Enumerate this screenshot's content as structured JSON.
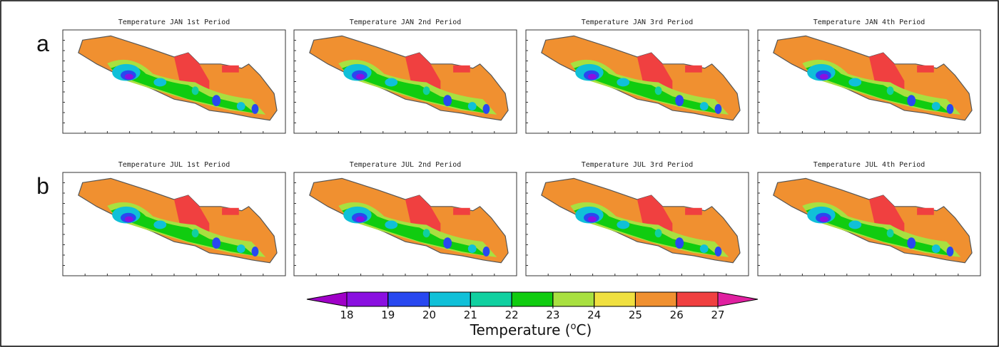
{
  "rows": [
    {
      "label": "a",
      "titles": [
        "Temperature JAN 1st Period",
        "Temperature JAN 2nd Period",
        "Temperature JAN 3rd Period",
        "Temperature JAN 4th Period"
      ]
    },
    {
      "label": "b",
      "titles": [
        "Temperature JUL 1st Period",
        "Temperature JUL 2nd Period",
        "Temperature JUL 3rd Period",
        "Temperature JUL 4th Period"
      ]
    }
  ],
  "colorbar": {
    "ticks": [
      18,
      19,
      20,
      21,
      22,
      23,
      24,
      25,
      26,
      27
    ],
    "colors": [
      "#a000c8",
      "#8a10e0",
      "#2848f0",
      "#10c0d8",
      "#10d0a0",
      "#10cc10",
      "#a8e040",
      "#f0e040",
      "#f09030",
      "#f04040",
      "#e020a0"
    ],
    "label": [
      "Temperature (",
      "o",
      "C)"
    ]
  }
}
